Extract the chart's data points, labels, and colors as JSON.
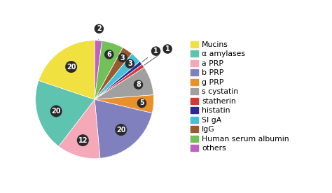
{
  "labels": [
    "others",
    "Human serum albumin",
    "IgG",
    "SI gA",
    "histatin",
    "statherin",
    "s cystatin",
    "g PRP",
    "b PRP",
    "a PRP",
    "α amylases",
    "Mucins"
  ],
  "values": [
    2,
    6,
    3,
    3,
    1,
    1,
    8,
    5,
    20,
    12,
    20,
    20
  ],
  "colors": [
    "#c060c0",
    "#72c058",
    "#9a5a30",
    "#45c0d8",
    "#2a2a95",
    "#d83535",
    "#a0a0a0",
    "#e8902a",
    "#8080be",
    "#f4a8b8",
    "#5ec4b0",
    "#f0e040"
  ],
  "legend_order_labels": [
    "Mucins",
    "α amylases",
    "a PRP",
    "b PRP",
    "g PRP",
    "s cystatin",
    "statherin",
    "histatin",
    "SI gA",
    "IgG",
    "Human serum albumin",
    "others"
  ],
  "legend_order_colors": [
    "#f0e040",
    "#5ec4b0",
    "#f4a8b8",
    "#8080be",
    "#e8902a",
    "#a0a0a0",
    "#d83535",
    "#2a2a95",
    "#45c0d8",
    "#9a5a30",
    "#72c058",
    "#c060c0"
  ],
  "label_fontsize": 7,
  "legend_fontsize": 7.8,
  "badge_color": "#2a2a2a"
}
